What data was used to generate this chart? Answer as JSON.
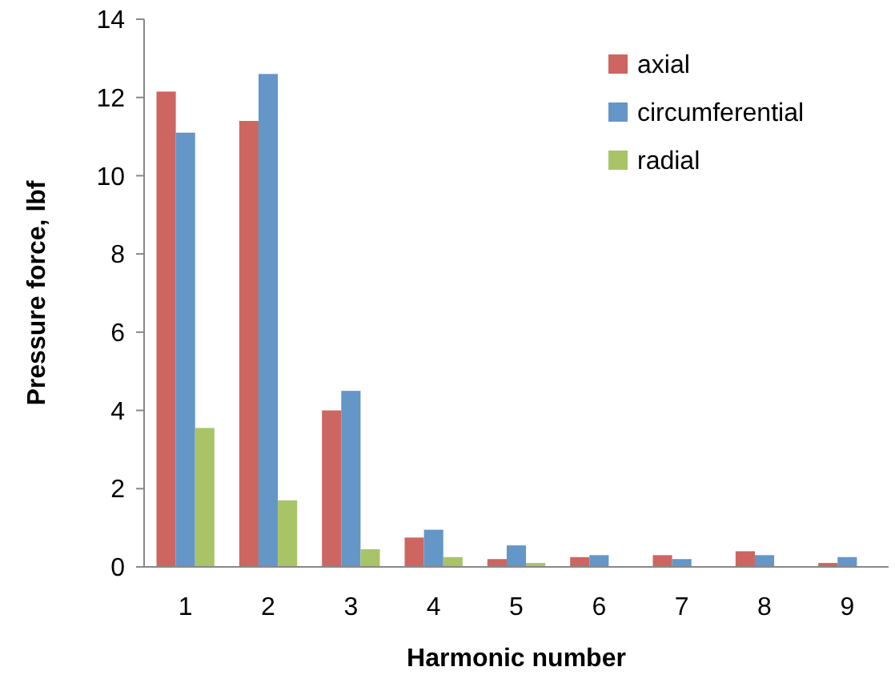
{
  "chart_data": {
    "type": "bar",
    "xlabel": "Harmonic number",
    "ylabel": "Pressure force, lbf",
    "categories": [
      "1",
      "2",
      "3",
      "4",
      "5",
      "6",
      "7",
      "8",
      "9"
    ],
    "series": [
      {
        "name": "axial",
        "color": "#cd6660",
        "values": [
          12.15,
          11.4,
          4.0,
          0.75,
          0.2,
          0.25,
          0.3,
          0.4,
          0.1
        ]
      },
      {
        "name": "circumferential",
        "color": "#6496c8",
        "values": [
          11.1,
          12.6,
          4.5,
          0.95,
          0.55,
          0.3,
          0.2,
          0.3,
          0.25
        ]
      },
      {
        "name": "radial",
        "color": "#a8c466",
        "values": [
          3.55,
          1.7,
          0.45,
          0.25,
          0.1,
          0,
          0,
          0,
          0
        ]
      }
    ],
    "ylim": [
      0,
      14
    ],
    "yticks": [
      0,
      2,
      4,
      6,
      8,
      10,
      12,
      14
    ],
    "grid": false,
    "legend": "top right"
  }
}
